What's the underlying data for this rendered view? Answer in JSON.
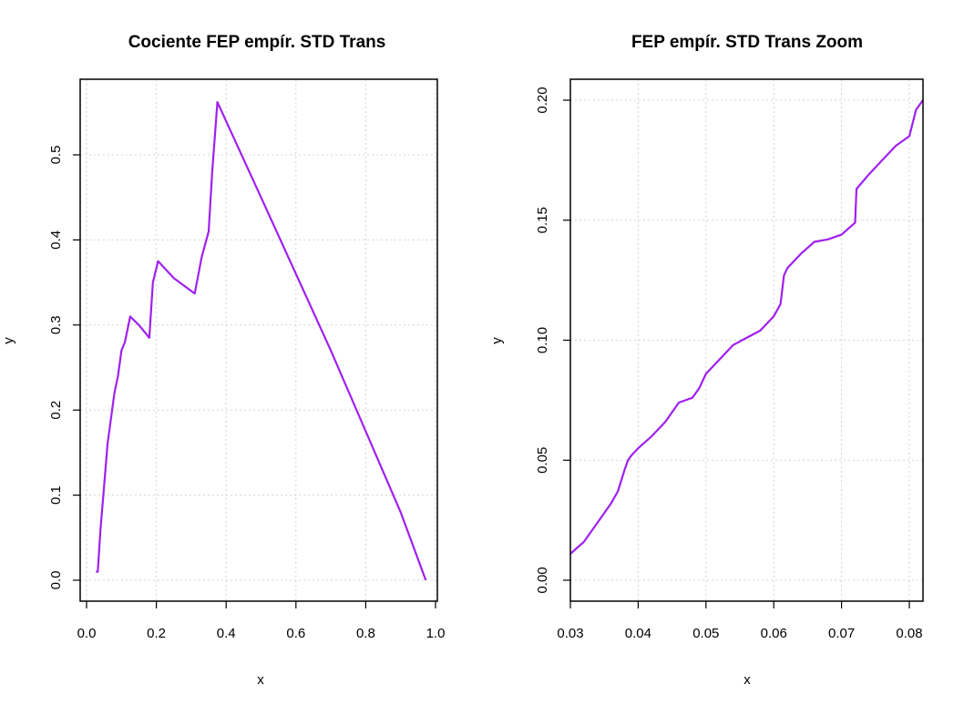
{
  "colors": {
    "series": "#a020f0",
    "grid": "#d3d3d3",
    "frame": "#000000"
  },
  "chart_data": [
    {
      "type": "line",
      "title": "Cociente FEP empír. STD Trans",
      "xlabel": "x",
      "ylabel": "y",
      "xlim": [
        0.0,
        1.0
      ],
      "ylim": [
        0.0,
        0.56
      ],
      "xticks": [
        "0.0",
        "0.2",
        "0.4",
        "0.6",
        "0.8",
        "1.0"
      ],
      "yticks": [
        "0.0",
        "0.1",
        "0.2",
        "0.3",
        "0.4",
        "0.5"
      ],
      "grid": true,
      "series": [
        {
          "x": [
            0.027,
            0.032,
            0.04,
            0.05,
            0.06,
            0.07,
            0.08,
            0.09,
            0.1,
            0.11,
            0.125,
            0.15,
            0.18,
            0.19,
            0.205,
            0.25,
            0.31,
            0.33,
            0.35,
            0.36,
            0.375,
            0.5,
            0.7,
            0.9,
            0.972
          ],
          "y": [
            0.01,
            0.01,
            0.06,
            0.11,
            0.16,
            0.19,
            0.22,
            0.24,
            0.27,
            0.28,
            0.31,
            0.3,
            0.285,
            0.35,
            0.375,
            0.355,
            0.337,
            0.38,
            0.41,
            0.48,
            0.562,
            0.45,
            0.27,
            0.08,
            0.0
          ]
        }
      ]
    },
    {
      "type": "line",
      "title": "FEP empír. STD Trans Zoom",
      "xlabel": "x",
      "ylabel": "y",
      "xlim": [
        0.03,
        0.082
      ],
      "ylim": [
        0.0,
        0.2
      ],
      "xticks": [
        "0.03",
        "0.04",
        "0.05",
        "0.06",
        "0.07",
        "0.08"
      ],
      "yticks": [
        "0.00",
        "0.05",
        "0.10",
        "0.15",
        "0.20"
      ],
      "grid": true,
      "series": [
        {
          "x": [
            0.03,
            0.032,
            0.034,
            0.036,
            0.037,
            0.038,
            0.0385,
            0.039,
            0.04,
            0.042,
            0.044,
            0.046,
            0.048,
            0.049,
            0.05,
            0.052,
            0.054,
            0.056,
            0.058,
            0.06,
            0.061,
            0.0615,
            0.062,
            0.064,
            0.066,
            0.068,
            0.07,
            0.072,
            0.0722,
            0.074,
            0.076,
            0.078,
            0.08,
            0.081,
            0.082
          ],
          "y": [
            0.011,
            0.016,
            0.024,
            0.032,
            0.037,
            0.046,
            0.05,
            0.052,
            0.055,
            0.06,
            0.066,
            0.074,
            0.076,
            0.08,
            0.086,
            0.092,
            0.098,
            0.101,
            0.104,
            0.11,
            0.115,
            0.127,
            0.13,
            0.136,
            0.141,
            0.142,
            0.144,
            0.149,
            0.163,
            0.169,
            0.175,
            0.181,
            0.185,
            0.196,
            0.2
          ]
        }
      ]
    }
  ]
}
